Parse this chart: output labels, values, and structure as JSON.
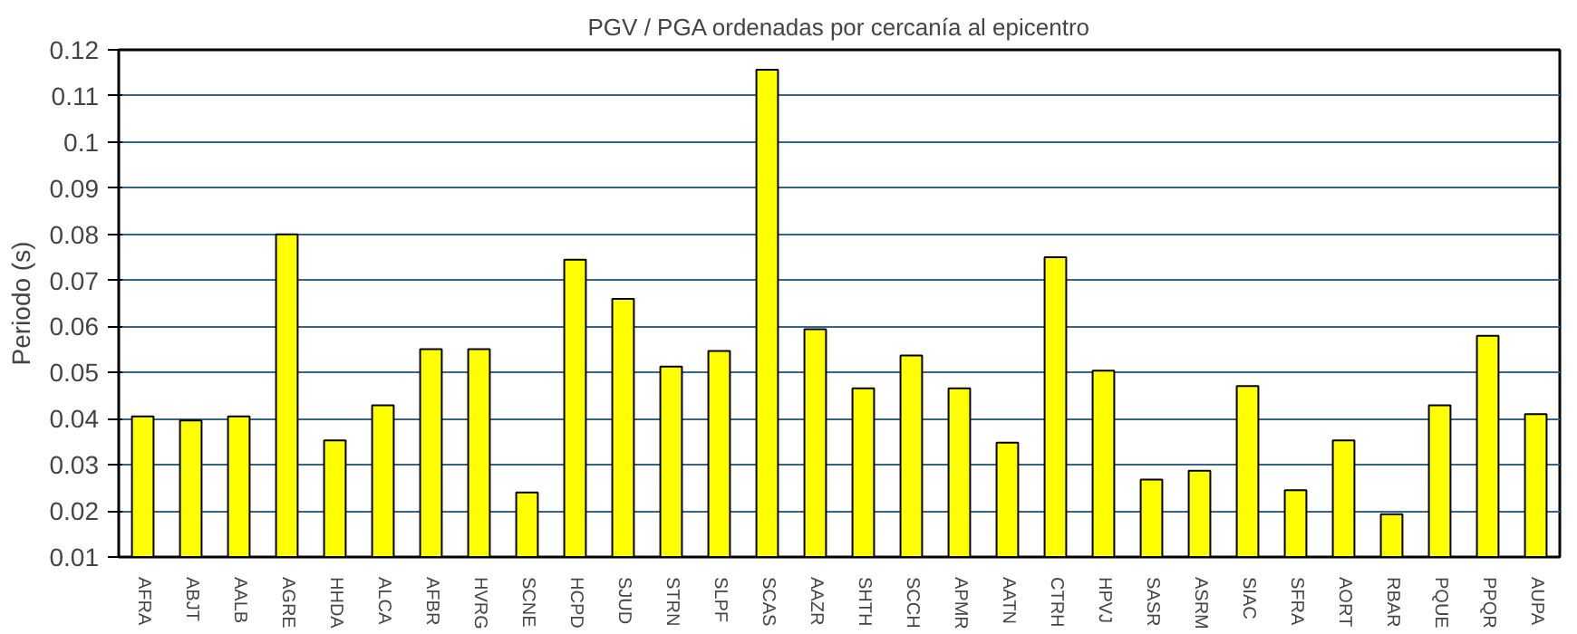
{
  "chart_data": {
    "type": "bar",
    "title": "PGV / PGA ordenadas por cercanía al epicentro",
    "ylabel": "Periodo (s)",
    "categories": [
      "AFRA",
      "ABJT",
      "AALB",
      "AGRE",
      "HHDA",
      "ALCA",
      "AFBR",
      "HVRG",
      "SCNE",
      "HCPD",
      "SJUD",
      "STRN",
      "SLPF",
      "SCAS",
      "AAZR",
      "SHTH",
      "SCCH",
      "APMR",
      "AATN",
      "CTRH",
      "HPVJ",
      "SASR",
      "ASRM",
      "SIAC",
      "SFRA",
      "AORT",
      "RBAR",
      "PQUE",
      "PPQR",
      "AUPA"
    ],
    "values": [
      0.0405,
      0.0396,
      0.0405,
      0.08,
      0.0353,
      0.0429,
      0.0551,
      0.0551,
      0.024,
      0.0745,
      0.066,
      0.0513,
      0.0547,
      0.1157,
      0.0594,
      0.0466,
      0.0537,
      0.0466,
      0.0348,
      0.075,
      0.0504,
      0.0268,
      0.0287,
      0.0471,
      0.0245,
      0.0353,
      0.0193,
      0.0429,
      0.058,
      0.041
    ],
    "color": "#ffff00",
    "ylim": [
      0.01,
      0.12
    ],
    "yticks": [
      0.01,
      0.02,
      0.03,
      0.04,
      0.05,
      0.06,
      0.07,
      0.08,
      0.09,
      0.1,
      0.11,
      0.12
    ],
    "grid": "y"
  }
}
